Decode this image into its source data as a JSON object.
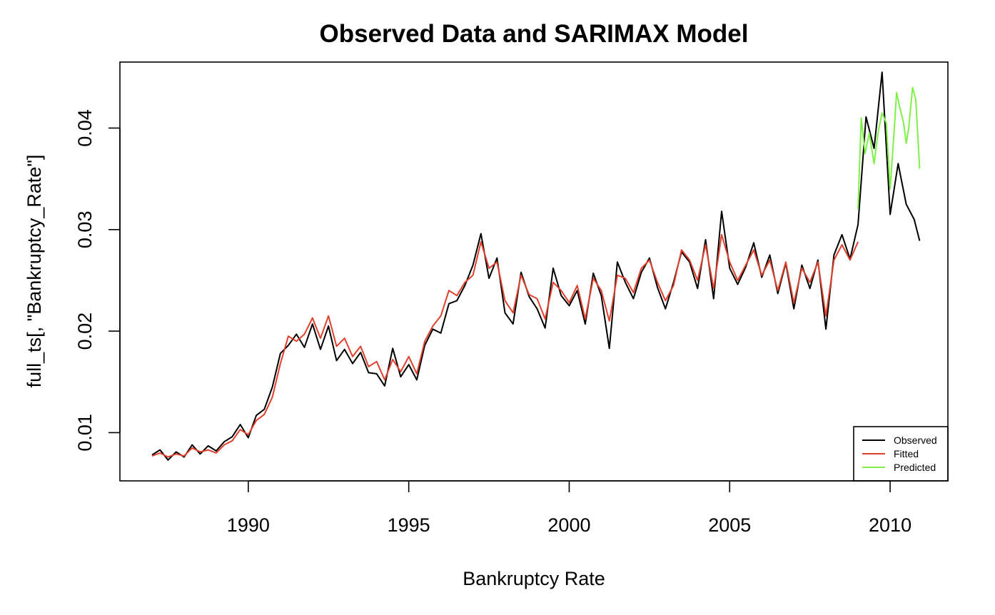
{
  "chart_data": {
    "type": "line",
    "title": "Observed Data and SARIMAX Model",
    "xlabel": "Bankruptcy Rate",
    "ylabel": "full_ts[, \"Bankruptcy_Rate\"]",
    "xlim": [
      1986.0,
      2011.8
    ],
    "ylim": [
      0.00525,
      0.0465
    ],
    "x_ticks": [
      1990,
      1995,
      2000,
      2005,
      2010
    ],
    "x_tick_labels": [
      "1990",
      "1995",
      "2000",
      "2005",
      "2010"
    ],
    "y_ticks": [
      0.01,
      0.02,
      0.03,
      0.04
    ],
    "y_tick_labels": [
      "0.01",
      "0.02",
      "0.03",
      "0.04"
    ],
    "legend_position": "bottom-right",
    "legend": [
      "Observed",
      "Fitted",
      "Predicted"
    ],
    "series": [
      {
        "name": "Observed",
        "color": "#000000",
        "x": [
          1987.0,
          1987.25,
          1987.5,
          1987.75,
          1988.0,
          1988.25,
          1988.5,
          1988.75,
          1989.0,
          1989.25,
          1989.5,
          1989.75,
          1990.0,
          1990.25,
          1990.5,
          1990.75,
          1991.0,
          1991.25,
          1991.5,
          1991.75,
          1992.0,
          1992.25,
          1992.5,
          1992.75,
          1993.0,
          1993.25,
          1993.5,
          1993.75,
          1994.0,
          1994.25,
          1994.5,
          1994.75,
          1995.0,
          1995.25,
          1995.5,
          1995.75,
          1996.0,
          1996.25,
          1996.5,
          1996.75,
          1997.0,
          1997.25,
          1997.5,
          1997.75,
          1998.0,
          1998.25,
          1998.5,
          1998.75,
          1999.0,
          1999.25,
          1999.5,
          1999.75,
          2000.0,
          2000.25,
          2000.5,
          2000.75,
          2001.0,
          2001.25,
          2001.5,
          2001.75,
          2002.0,
          2002.25,
          2002.5,
          2002.75,
          2003.0,
          2003.25,
          2003.5,
          2003.75,
          2004.0,
          2004.25,
          2004.5,
          2004.75,
          2005.0,
          2005.25,
          2005.5,
          2005.75,
          2006.0,
          2006.25,
          2006.5,
          2006.75,
          2007.0,
          2007.25,
          2007.5,
          2007.75,
          2008.0,
          2008.25,
          2008.5,
          2008.75,
          2009.0,
          2009.25,
          2009.5,
          2009.75,
          2010.0,
          2010.25,
          2010.5,
          2010.75,
          2010.92
        ],
        "values": [
          0.0078,
          0.0083,
          0.0073,
          0.0081,
          0.0076,
          0.0088,
          0.0079,
          0.0087,
          0.0082,
          0.0091,
          0.0096,
          0.0108,
          0.0095,
          0.0117,
          0.0123,
          0.0145,
          0.0178,
          0.0186,
          0.0197,
          0.0184,
          0.0207,
          0.0182,
          0.0205,
          0.0171,
          0.0182,
          0.0168,
          0.0179,
          0.0159,
          0.0158,
          0.0146,
          0.0183,
          0.0155,
          0.0167,
          0.0152,
          0.0186,
          0.0202,
          0.0198,
          0.0227,
          0.023,
          0.0245,
          0.0265,
          0.0296,
          0.0252,
          0.0272,
          0.0218,
          0.0207,
          0.0258,
          0.0234,
          0.0222,
          0.0203,
          0.0262,
          0.0235,
          0.0225,
          0.024,
          0.0207,
          0.0257,
          0.0235,
          0.0183,
          0.0268,
          0.0248,
          0.0232,
          0.0258,
          0.0272,
          0.0243,
          0.0222,
          0.0248,
          0.0278,
          0.0268,
          0.0242,
          0.029,
          0.0232,
          0.0318,
          0.0262,
          0.0246,
          0.0263,
          0.0287,
          0.0253,
          0.0275,
          0.0237,
          0.0267,
          0.0222,
          0.0265,
          0.0242,
          0.027,
          0.0202,
          0.0275,
          0.0295,
          0.0271,
          0.0305,
          0.0411,
          0.038,
          0.0455,
          0.0315,
          0.0365,
          0.0325,
          0.031,
          0.0289
        ]
      },
      {
        "name": "Fitted",
        "color": "#e0412d",
        "x": [
          1987.0,
          1987.25,
          1987.5,
          1987.75,
          1988.0,
          1988.25,
          1988.5,
          1988.75,
          1989.0,
          1989.25,
          1989.5,
          1989.75,
          1990.0,
          1990.25,
          1990.5,
          1990.75,
          1991.0,
          1991.25,
          1991.5,
          1991.75,
          1992.0,
          1992.25,
          1992.5,
          1992.75,
          1993.0,
          1993.25,
          1993.5,
          1993.75,
          1994.0,
          1994.25,
          1994.5,
          1994.75,
          1995.0,
          1995.25,
          1995.5,
          1995.75,
          1996.0,
          1996.25,
          1996.5,
          1996.75,
          1997.0,
          1997.25,
          1997.5,
          1997.75,
          1998.0,
          1998.25,
          1998.5,
          1998.75,
          1999.0,
          1999.25,
          1999.5,
          1999.75,
          2000.0,
          2000.25,
          2000.5,
          2000.75,
          2001.0,
          2001.25,
          2001.5,
          2001.75,
          2002.0,
          2002.25,
          2002.5,
          2002.75,
          2003.0,
          2003.25,
          2003.5,
          2003.75,
          2004.0,
          2004.25,
          2004.5,
          2004.75,
          2005.0,
          2005.25,
          2005.5,
          2005.75,
          2006.0,
          2006.25,
          2006.5,
          2006.75,
          2007.0,
          2007.25,
          2007.5,
          2007.75,
          2008.0,
          2008.25,
          2008.5,
          2008.75,
          2009.0
        ],
        "values": [
          0.0077,
          0.008,
          0.0076,
          0.0079,
          0.0077,
          0.0085,
          0.0081,
          0.0083,
          0.008,
          0.0088,
          0.0092,
          0.0103,
          0.0098,
          0.0112,
          0.0118,
          0.0135,
          0.0168,
          0.0195,
          0.019,
          0.0197,
          0.0213,
          0.0193,
          0.0215,
          0.0185,
          0.0193,
          0.0175,
          0.0185,
          0.0165,
          0.017,
          0.0152,
          0.0172,
          0.016,
          0.0175,
          0.0158,
          0.019,
          0.0205,
          0.0215,
          0.024,
          0.0235,
          0.0248,
          0.0255,
          0.0288,
          0.0262,
          0.0268,
          0.023,
          0.0218,
          0.0255,
          0.0236,
          0.0232,
          0.0212,
          0.0248,
          0.024,
          0.0228,
          0.0245,
          0.0212,
          0.0252,
          0.024,
          0.021,
          0.0255,
          0.0252,
          0.0238,
          0.0262,
          0.027,
          0.0248,
          0.023,
          0.0245,
          0.028,
          0.027,
          0.025,
          0.0285,
          0.0242,
          0.0295,
          0.0268,
          0.025,
          0.0265,
          0.028,
          0.0255,
          0.027,
          0.024,
          0.0268,
          0.0228,
          0.0262,
          0.0248,
          0.0268,
          0.0215,
          0.027,
          0.0285,
          0.027,
          0.0288
        ]
      },
      {
        "name": "Predicted",
        "color": "#7ff04a",
        "x": [
          2009.0,
          2009.1,
          2009.22,
          2009.35,
          2009.5,
          2009.62,
          2009.75,
          2009.88,
          2010.0,
          2010.12,
          2010.2,
          2010.3,
          2010.42,
          2010.5,
          2010.58,
          2010.7,
          2010.8,
          2010.92
        ],
        "values": [
          0.032,
          0.041,
          0.0375,
          0.0395,
          0.0365,
          0.0395,
          0.0415,
          0.0405,
          0.034,
          0.0395,
          0.0435,
          0.042,
          0.0405,
          0.0385,
          0.04,
          0.044,
          0.0428,
          0.036
        ]
      }
    ]
  }
}
